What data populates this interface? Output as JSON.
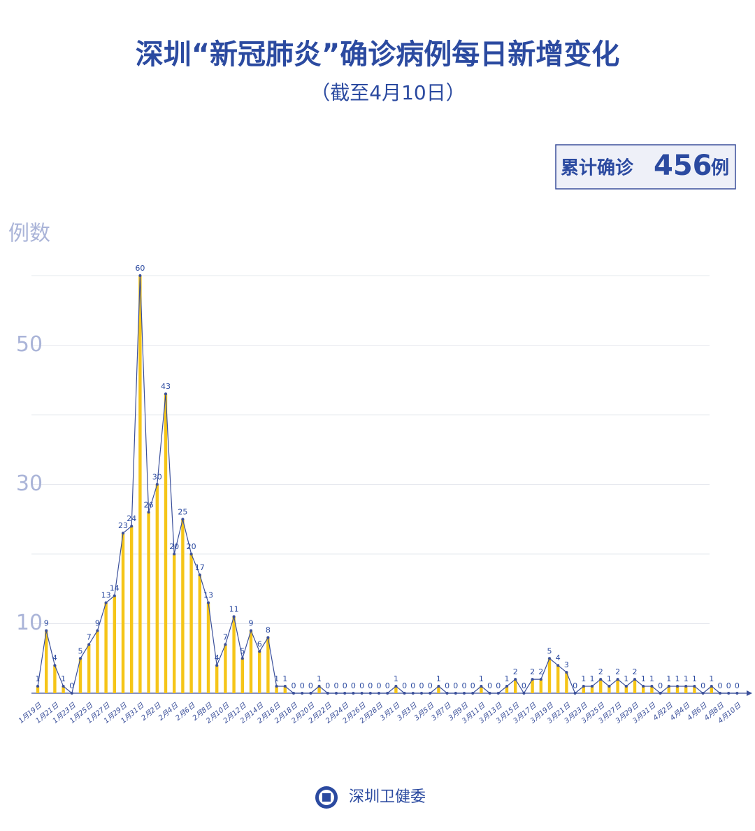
{
  "chart_data": {
    "type": "bar_line",
    "title": "深圳“新冠肺炎”确诊病例每日新增变化",
    "subtitle": "（截至4月10日）",
    "total": {
      "label": "累计确诊",
      "value": 456,
      "unit": "例"
    },
    "y_axis_label": "例数",
    "source": "深圳卫健委",
    "categories": [
      "1月19日",
      null,
      "1月21日",
      null,
      "1月23日",
      null,
      "1月25日",
      null,
      "1月27日",
      null,
      "1月29日",
      null,
      "1月31日",
      null,
      "2月2日",
      null,
      "2月4日",
      null,
      "2月6日",
      null,
      "2月8日",
      null,
      "2月10日",
      null,
      "2月12日",
      null,
      "2月14日",
      null,
      "2月16日",
      null,
      "2月18日",
      null,
      "2月20日",
      null,
      "2月22日",
      null,
      "2月24日",
      null,
      "2月26日",
      null,
      "2月28日",
      null,
      "3月1日",
      null,
      "3月3日",
      null,
      "3月5日",
      null,
      "3月7日",
      null,
      "3月9日",
      null,
      "3月11日",
      null,
      "3月13日",
      null,
      "3月15日",
      null,
      "3月17日",
      null,
      "3月19日",
      null,
      "3月21日",
      null,
      "3月23日",
      null,
      "3月25日",
      null,
      "3月27日",
      null,
      "3月29日",
      null,
      "3月31日",
      null,
      "4月2日",
      null,
      "4月4日",
      null,
      "4月6日",
      null,
      "4月8日",
      null,
      "4月10日"
    ],
    "values": [
      1,
      9,
      4,
      1,
      0,
      5,
      7,
      9,
      13,
      14,
      23,
      24,
      60,
      26,
      30,
      43,
      20,
      25,
      20,
      17,
      13,
      4,
      7,
      11,
      5,
      9,
      6,
      8,
      1,
      1,
      0,
      0,
      0,
      1,
      0,
      0,
      0,
      0,
      0,
      0,
      0,
      0,
      1,
      0,
      0,
      0,
      0,
      1,
      0,
      0,
      0,
      0,
      1,
      0,
      0,
      1,
      2,
      0,
      2,
      2,
      5,
      4,
      3,
      0,
      1,
      1,
      2,
      1,
      2,
      1,
      2,
      1,
      1,
      0,
      1,
      1,
      1,
      1,
      0,
      1,
      0,
      0,
      0
    ],
    "bar_color": "#f5c518",
    "line_color": "#3a4f9a",
    "ylim": [
      0,
      60
    ],
    "yticks": [
      10,
      30,
      50
    ],
    "grid_lines": [
      10,
      20,
      30,
      40,
      50,
      60
    ],
    "grid": true
  }
}
